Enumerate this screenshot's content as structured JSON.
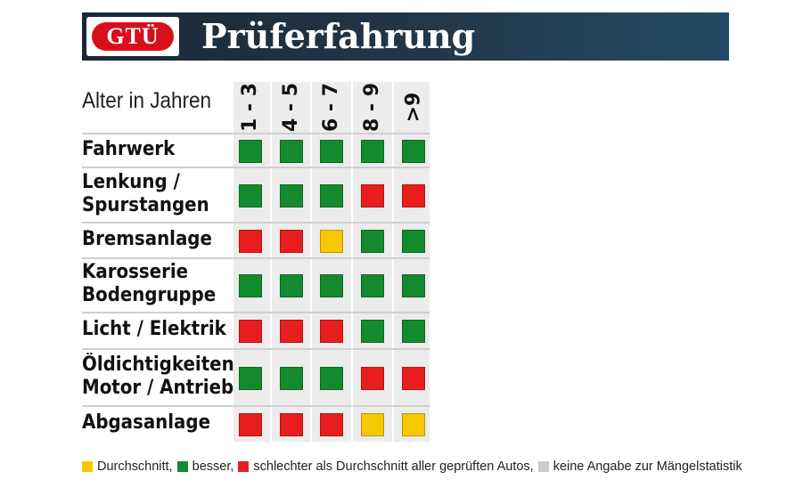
{
  "header": {
    "logo": "GTÜ",
    "title": "Prüferfahrung"
  },
  "table": {
    "age_label": "Alter in Jahren",
    "columns": [
      "1 - 3",
      "4 - 5",
      "6 - 7",
      "8 - 9",
      ">9"
    ],
    "rows": [
      {
        "label": [
          "Fahrwerk"
        ],
        "ratings": [
          "green",
          "green",
          "green",
          "green",
          "green"
        ]
      },
      {
        "label": [
          "Lenkung /",
          "Spurstangen"
        ],
        "ratings": [
          "green",
          "green",
          "green",
          "red",
          "red"
        ]
      },
      {
        "label": [
          "Bremsanlage"
        ],
        "ratings": [
          "red",
          "red",
          "yellow",
          "green",
          "green"
        ]
      },
      {
        "label": [
          "Karosserie",
          "Bodengruppe"
        ],
        "ratings": [
          "green",
          "green",
          "green",
          "green",
          "green"
        ]
      },
      {
        "label": [
          "Licht / Elektrik"
        ],
        "ratings": [
          "red",
          "red",
          "red",
          "green",
          "green"
        ]
      },
      {
        "label": [
          "Öldichtigkeiten",
          "Motor / Antrieb"
        ],
        "ratings": [
          "green",
          "green",
          "green",
          "red",
          "red"
        ]
      },
      {
        "label": [
          "Abgasanlage"
        ],
        "ratings": [
          "red",
          "red",
          "red",
          "yellow",
          "yellow"
        ]
      }
    ]
  },
  "legend": {
    "yellow": "Durchschnitt,",
    "green": "besser,",
    "red": "schlechter als Durchschnitt aller geprüften Autos,",
    "gray": "keine Angabe zur Mängelstatistik"
  },
  "colors": {
    "green": "#148a2e",
    "red": "#e81e1e",
    "yellow": "#f5c800",
    "gray": "#cccccc",
    "banner": "#1f3344",
    "logo_red": "#d7101c"
  }
}
